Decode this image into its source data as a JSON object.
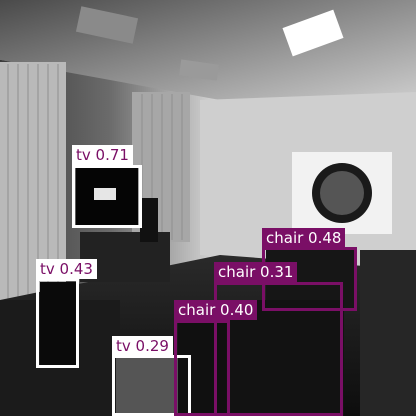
{
  "image": {
    "description_icon": "grayscale-office-photo",
    "box_colors": {
      "tv": "#ffffff",
      "chair": "#7a0f66"
    },
    "label_text_colors": {
      "tv": "#7a0f66",
      "chair": "#ffffff"
    }
  },
  "detections": [
    {
      "id": "tv-1",
      "label": "tv 0.71"
    },
    {
      "id": "tv-2",
      "label": "tv 0.43"
    },
    {
      "id": "tv-3",
      "label": "tv 0.29"
    },
    {
      "id": "chair-1",
      "label": "chair 0.48"
    },
    {
      "id": "chair-2",
      "label": "chair 0.31"
    },
    {
      "id": "chair-3",
      "label": "chair 0.40"
    }
  ]
}
